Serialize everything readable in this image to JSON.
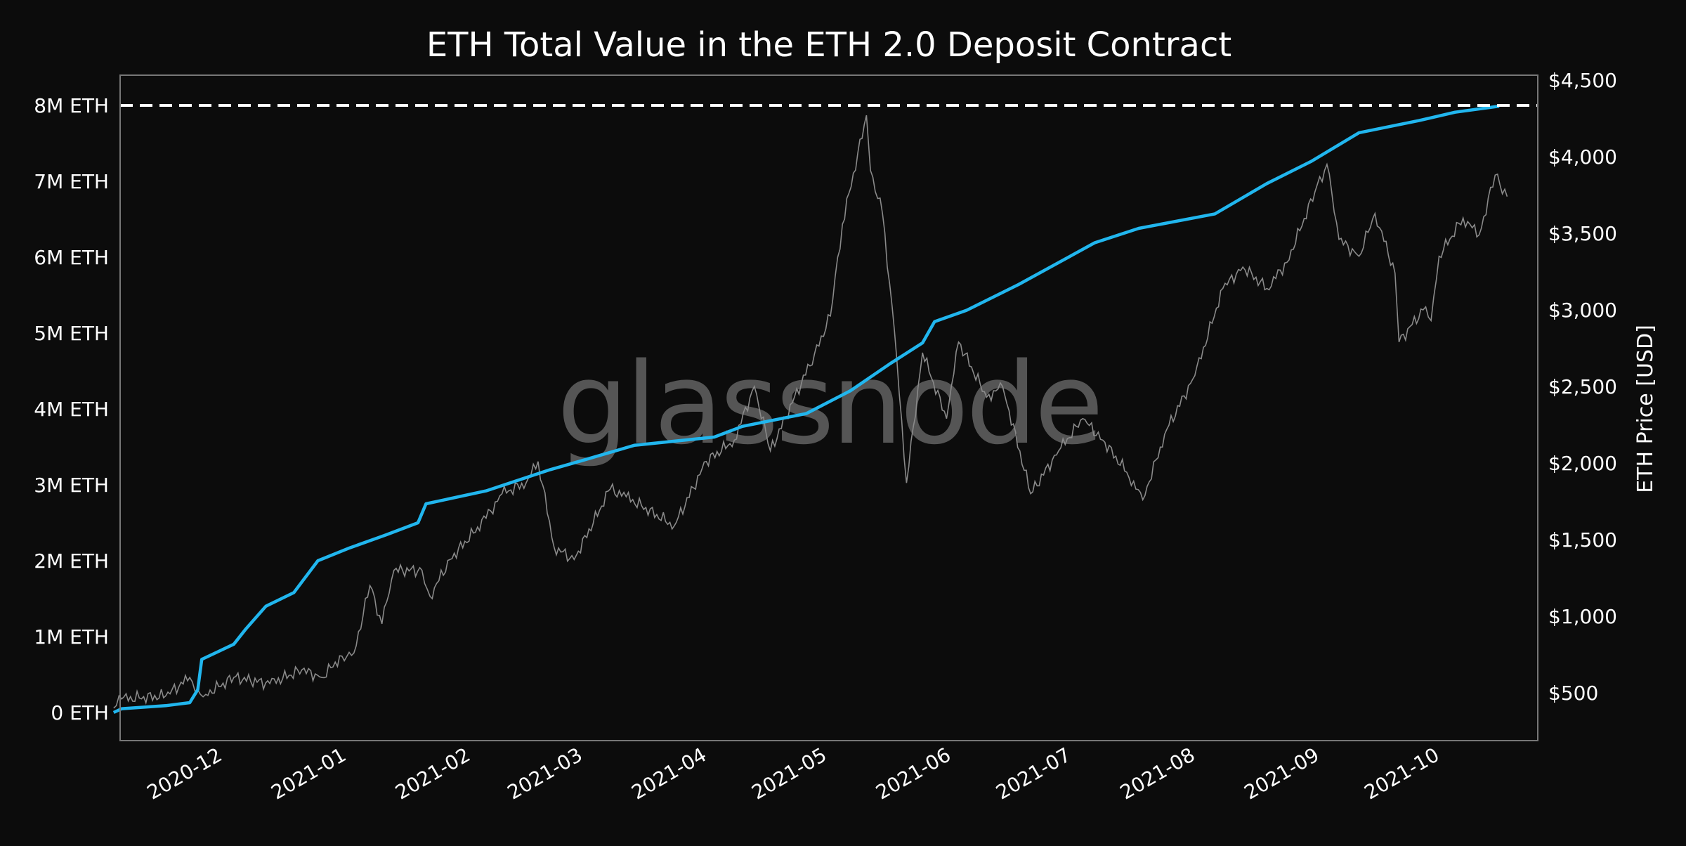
{
  "chart_data": {
    "type": "line",
    "title": "ETH Total Value in the ETH 2.0 Deposit Contract",
    "watermark": "glassnode",
    "xlabel": "",
    "ylabel_left": "",
    "ylabel_right": "ETH Price [USD]",
    "x_ticks": [
      "2020-12",
      "2021-01",
      "2021-02",
      "2021-03",
      "2021-04",
      "2021-05",
      "2021-06",
      "2021-07",
      "2021-08",
      "2021-09",
      "2021-10"
    ],
    "y_left_ticks": [
      "0 ETH",
      "1M ETH",
      "2M ETH",
      "3M ETH",
      "4M ETH",
      "5M ETH",
      "6M ETH",
      "7M ETH",
      "8M ETH"
    ],
    "y_left_tick_values": [
      0,
      1,
      2,
      3,
      4,
      5,
      6,
      7,
      8
    ],
    "y_right_ticks": [
      "$500",
      "$1,000",
      "$1,500",
      "$2,000",
      "$2,500",
      "$3,000",
      "$3,500",
      "$4,000",
      "$4,500"
    ],
    "y_right_tick_values": [
      500,
      1000,
      1500,
      2000,
      2500,
      3000,
      3500,
      4000,
      4500
    ],
    "grid": false,
    "reference_line": {
      "value": 8,
      "style": "dashed",
      "color": "#ffffff"
    },
    "colors": {
      "background": "#0c0c0c",
      "deposit": "#21b6ee",
      "price": "#8a8a8a",
      "frame": "#777777"
    },
    "series": [
      {
        "axis": "left",
        "unit": "M ETH",
        "points": [
          [
            "2020-11-05",
            0.0
          ],
          [
            "2020-11-07",
            0.05
          ],
          [
            "2020-11-18",
            0.09
          ],
          [
            "2020-11-24",
            0.13
          ],
          [
            "2020-11-26",
            0.3
          ],
          [
            "2020-11-27",
            0.7
          ],
          [
            "2020-12-01",
            0.8
          ],
          [
            "2020-12-05",
            0.9
          ],
          [
            "2020-12-08",
            1.1
          ],
          [
            "2020-12-13",
            1.4
          ],
          [
            "2020-12-20",
            1.58
          ],
          [
            "2020-12-22",
            1.72
          ],
          [
            "2020-12-26",
            2.0
          ],
          [
            "2021-01-03",
            2.17
          ],
          [
            "2021-01-12",
            2.34
          ],
          [
            "2021-01-20",
            2.5
          ],
          [
            "2021-01-22",
            2.75
          ],
          [
            "2021-02-06",
            2.92
          ],
          [
            "2021-02-22",
            3.2
          ],
          [
            "2021-03-02",
            3.32
          ],
          [
            "2021-03-15",
            3.52
          ],
          [
            "2021-04-04",
            3.63
          ],
          [
            "2021-04-11",
            3.77
          ],
          [
            "2021-04-27",
            3.94
          ],
          [
            "2021-05-08",
            4.24
          ],
          [
            "2021-05-18",
            4.6
          ],
          [
            "2021-05-26",
            4.87
          ],
          [
            "2021-05-29",
            5.15
          ],
          [
            "2021-06-06",
            5.3
          ],
          [
            "2021-06-19",
            5.64
          ],
          [
            "2021-07-08",
            6.19
          ],
          [
            "2021-07-19",
            6.38
          ],
          [
            "2021-08-07",
            6.57
          ],
          [
            "2021-08-20",
            6.97
          ],
          [
            "2021-08-31",
            7.26
          ],
          [
            "2021-09-12",
            7.64
          ],
          [
            "2021-09-27",
            7.8
          ],
          [
            "2021-10-06",
            7.91
          ],
          [
            "2021-10-17",
            7.99
          ]
        ]
      },
      {
        "axis": "right",
        "unit": "USD",
        "points": [
          [
            "2020-11-05",
            400
          ],
          [
            "2020-11-07",
            460
          ],
          [
            "2020-11-18",
            480
          ],
          [
            "2020-11-24",
            600
          ],
          [
            "2020-11-26",
            520
          ],
          [
            "2020-11-28",
            490
          ],
          [
            "2020-12-05",
            600
          ],
          [
            "2020-12-14",
            560
          ],
          [
            "2020-12-22",
            650
          ],
          [
            "2020-12-27",
            600
          ],
          [
            "2021-01-01",
            740
          ],
          [
            "2021-01-04",
            760
          ],
          [
            "2021-01-08",
            1200
          ],
          [
            "2021-01-11",
            950
          ],
          [
            "2021-01-14",
            1300
          ],
          [
            "2021-01-21",
            1300
          ],
          [
            "2021-01-23",
            1130
          ],
          [
            "2021-01-28",
            1370
          ],
          [
            "2021-02-06",
            1640
          ],
          [
            "2021-02-10",
            1800
          ],
          [
            "2021-02-16",
            1870
          ],
          [
            "2021-02-19",
            2010
          ],
          [
            "2021-02-23",
            1450
          ],
          [
            "2021-02-28",
            1370
          ],
          [
            "2021-03-09",
            1830
          ],
          [
            "2021-03-13",
            1780
          ],
          [
            "2021-03-25",
            1590
          ],
          [
            "2021-04-02",
            2010
          ],
          [
            "2021-04-09",
            2150
          ],
          [
            "2021-04-14",
            2500
          ],
          [
            "2021-04-18",
            2080
          ],
          [
            "2021-04-29",
            2710
          ],
          [
            "2021-05-03",
            2960
          ],
          [
            "2021-05-06",
            3560
          ],
          [
            "2021-05-12",
            4270
          ],
          [
            "2021-05-13",
            3910
          ],
          [
            "2021-05-16",
            3630
          ],
          [
            "2021-05-19",
            2860
          ],
          [
            "2021-05-22",
            1870
          ],
          [
            "2021-05-26",
            2720
          ],
          [
            "2021-06-01",
            2290
          ],
          [
            "2021-06-04",
            2790
          ],
          [
            "2021-06-11",
            2430
          ],
          [
            "2021-06-15",
            2500
          ],
          [
            "2021-06-22",
            1800
          ],
          [
            "2021-06-29",
            2080
          ],
          [
            "2021-07-05",
            2290
          ],
          [
            "2021-07-10",
            2150
          ],
          [
            "2021-07-16",
            1940
          ],
          [
            "2021-07-20",
            1760
          ],
          [
            "2021-07-26",
            2220
          ],
          [
            "2021-08-02",
            2570
          ],
          [
            "2021-08-09",
            3140
          ],
          [
            "2021-08-14",
            3280
          ],
          [
            "2021-08-20",
            3140
          ],
          [
            "2021-08-25",
            3310
          ],
          [
            "2021-09-01",
            3770
          ],
          [
            "2021-09-04",
            3950
          ],
          [
            "2021-09-07",
            3460
          ],
          [
            "2021-09-12",
            3350
          ],
          [
            "2021-09-16",
            3630
          ],
          [
            "2021-09-21",
            3240
          ],
          [
            "2021-09-22",
            2790
          ],
          [
            "2021-09-28",
            3000
          ],
          [
            "2021-09-30",
            2930
          ],
          [
            "2021-10-02",
            3350
          ],
          [
            "2021-10-08",
            3600
          ],
          [
            "2021-10-12",
            3490
          ],
          [
            "2021-10-16",
            3880
          ],
          [
            "2021-10-19",
            3740
          ]
        ]
      }
    ]
  }
}
